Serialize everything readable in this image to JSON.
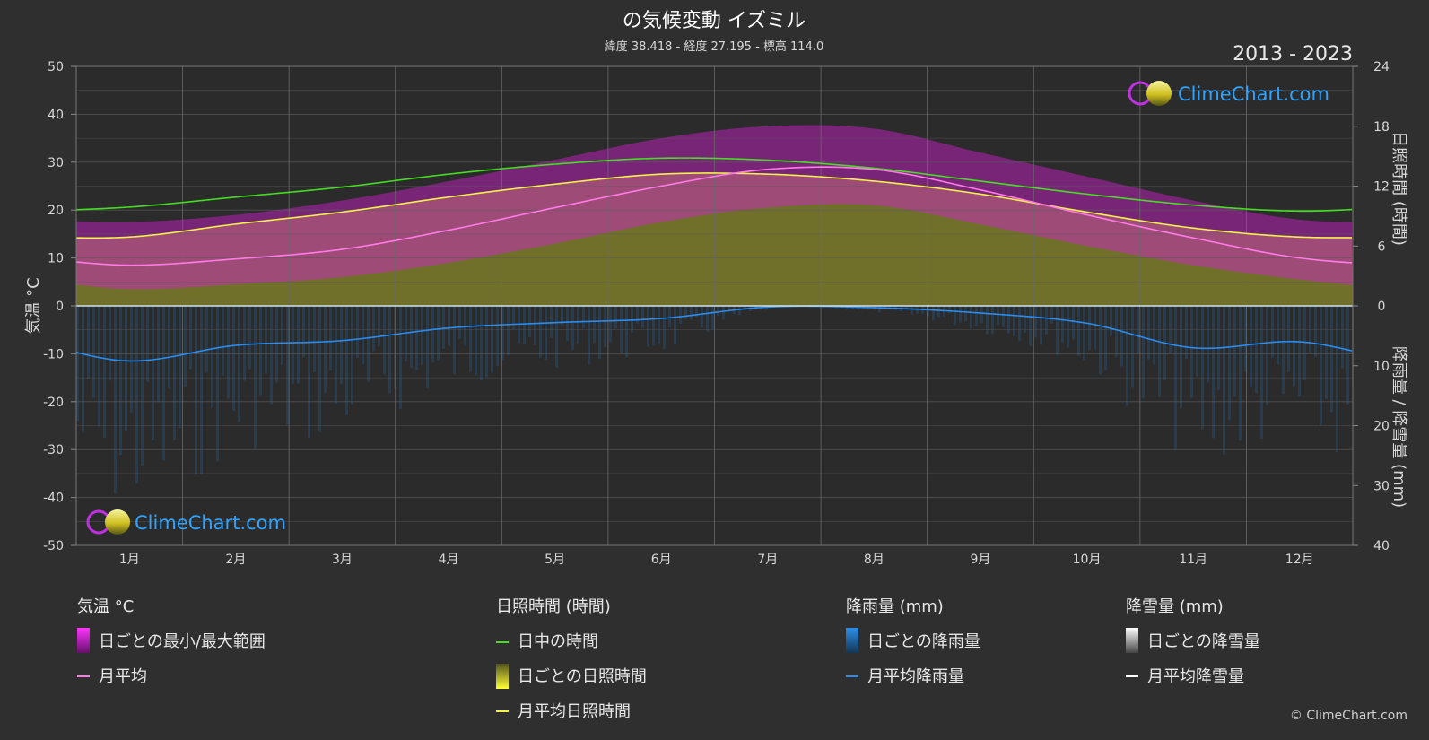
{
  "header": {
    "title": "の気候変動 イズミル",
    "subtitle": "緯度 38.418 - 経度 27.195 - 標高 114.0",
    "year_range": "2013 - 2023"
  },
  "brand": {
    "name": "ClimeChart.com",
    "copyright": "© ClimeChart.com"
  },
  "axes": {
    "left_label": "気温 °C",
    "right_top_label": "日照時間 (時間)",
    "right_bottom_label": "降雨量 / 降雪量 (mm)",
    "left_ticks": [
      "50",
      "40",
      "30",
      "20",
      "10",
      "0",
      "-10",
      "-20",
      "-30",
      "-40",
      "-50"
    ],
    "right_top_ticks": [
      "24",
      "18",
      "12",
      "6",
      "0"
    ],
    "right_bottom_ticks": [
      "10",
      "20",
      "30",
      "40"
    ]
  },
  "legend": {
    "temperature": {
      "heading": "気温 °C",
      "items": [
        "日ごとの最小/最大範囲",
        "月平均"
      ]
    },
    "sunshine": {
      "heading": "日照時間 (時間)",
      "items": [
        "日中の時間",
        "日ごとの日照時間",
        "月平均日照時間"
      ]
    },
    "rain": {
      "heading": "降雨量 (mm)",
      "items": [
        "日ごとの降雨量",
        "月平均降雨量"
      ]
    },
    "snow": {
      "heading": "降雪量 (mm)",
      "items": [
        "日ごとの降雪量",
        "月平均降雪量"
      ]
    }
  },
  "colors": {
    "background": "#2f2f2f",
    "temp_range": "#d61fd6",
    "temp_mean": "#ff7ae6",
    "daylight": "#44dd22",
    "sunshine_fill": "#8c8c2e",
    "sunshine_mean": "#f2f24a",
    "rain": "#1f78c8",
    "rain_mean": "#2a8cf0",
    "snow_mean": "#ffffff",
    "brand": "#2ea3ff"
  },
  "chart_data": {
    "type": "area",
    "categories": [
      "1月",
      "2月",
      "3月",
      "4月",
      "5月",
      "6月",
      "7月",
      "8月",
      "9月",
      "10月",
      "11月",
      "12月"
    ],
    "ylim_temperature": [
      -50,
      50
    ],
    "ylim_sunshine_hours": [
      0,
      24
    ],
    "ylim_precip_mm": [
      0,
      40
    ],
    "grid": true,
    "series": [
      {
        "name": "日中の時間",
        "axis": "sunshine_hours",
        "values": [
          9.9,
          10.9,
          11.9,
          13.2,
          14.2,
          14.8,
          14.6,
          13.8,
          12.5,
          11.2,
          10.1,
          9.5
        ]
      },
      {
        "name": "月平均日照時間",
        "axis": "sunshine_hours",
        "values": [
          6.9,
          8.2,
          9.4,
          10.9,
          12.2,
          13.2,
          13.2,
          12.5,
          11.2,
          9.4,
          7.8,
          6.9
        ]
      },
      {
        "name": "月平均",
        "axis": "temperature",
        "values": [
          8.5,
          9.8,
          11.8,
          15.8,
          20.5,
          25.0,
          28.5,
          28.5,
          24.2,
          19.0,
          14.2,
          10.0
        ]
      },
      {
        "name": "日ごとの最小/最大範囲 (最大)",
        "axis": "temperature",
        "values": [
          17.5,
          19.0,
          22.0,
          26.0,
          30.5,
          35.0,
          37.5,
          37.0,
          32.0,
          27.0,
          22.0,
          18.0
        ]
      },
      {
        "name": "日ごとの最小/最大範囲 (最小)",
        "axis": "temperature",
        "values": [
          3.5,
          4.5,
          6.0,
          9.0,
          13.0,
          17.5,
          20.5,
          21.0,
          17.0,
          12.5,
          8.5,
          5.5
        ]
      },
      {
        "name": "月平均降雨量",
        "axis": "precip_mm",
        "values": [
          9.2,
          6.6,
          5.8,
          3.7,
          2.8,
          2.1,
          0.2,
          0.3,
          1.2,
          2.9,
          7.0,
          6.0
        ]
      },
      {
        "name": "月平均降雪量",
        "axis": "precip_mm",
        "values": [
          0,
          0,
          0,
          0,
          0,
          0,
          0,
          0,
          0,
          0,
          0,
          0
        ]
      }
    ]
  }
}
